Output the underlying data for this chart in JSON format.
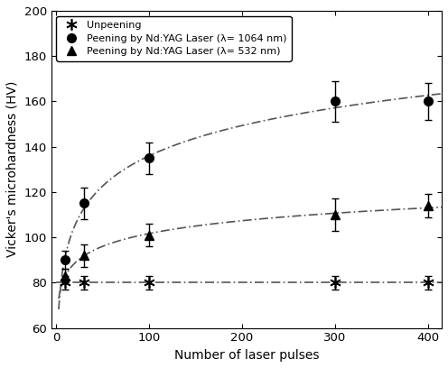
{
  "title": "",
  "xlabel": "Number of laser pulses",
  "ylabel": "Vicker's microhardness (HV)",
  "xlim": [
    -5,
    415
  ],
  "ylim": [
    60,
    200
  ],
  "yticks": [
    60,
    80,
    100,
    120,
    140,
    160,
    180,
    200
  ],
  "xticks": [
    0,
    100,
    200,
    300,
    400
  ],
  "unpeened_x": [
    10,
    30,
    100,
    300,
    400
  ],
  "unpeened_y": [
    80,
    80,
    80,
    80,
    80
  ],
  "unpeened_yerr": [
    3,
    3,
    3,
    3,
    3
  ],
  "laser1064_x": [
    10,
    30,
    100,
    300,
    400
  ],
  "laser1064_y": [
    90,
    115,
    135,
    160,
    160
  ],
  "laser1064_yerr": [
    4,
    7,
    7,
    9,
    8
  ],
  "laser532_x": [
    10,
    30,
    100,
    300,
    400
  ],
  "laser532_y": [
    83,
    92,
    101,
    110,
    114
  ],
  "laser532_yerr": [
    3,
    5,
    5,
    7,
    5
  ],
  "legend_labels": [
    "Unpeening",
    "Peening by Nd:YAG Laser (λ= 1064 nm)",
    "Peening by Nd:YAG Laser (λ= 532 nm)"
  ],
  "fit_color": "#555555",
  "marker_color": "#000000",
  "background_color": "#ffffff"
}
